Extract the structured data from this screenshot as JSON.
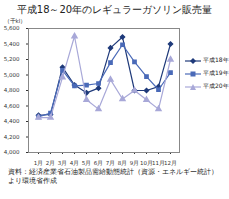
{
  "chart_data": {
    "type": "line",
    "title": "平成18～20年のレギュラーガソリン販売量",
    "y_label": "（千kl）",
    "caption": "資料：経済産業省石油製品需給動態統計（資源・エネルギー統計）より環境省作成",
    "categories": [
      "1月",
      "2月",
      "3月",
      "4月",
      "5月",
      "6月",
      "7月",
      "8月",
      "9月",
      "10月",
      "11月",
      "12月"
    ],
    "series": [
      {
        "name": "平成18年",
        "color": "#1f3a7a",
        "marker": "diamond",
        "values": [
          4480,
          4490,
          5100,
          4870,
          4770,
          4830,
          5350,
          5490,
          4800,
          4800,
          4850,
          5400
        ]
      },
      {
        "name": "平成19年",
        "color": "#4a6ab8",
        "marker": "square",
        "values": [
          4460,
          4510,
          5060,
          4860,
          4870,
          4890,
          5160,
          5390,
          5170,
          4980,
          4810,
          5030
        ]
      },
      {
        "name": "平成20年",
        "color": "#a8a8d8",
        "marker": "triangle",
        "values": [
          4450,
          4450,
          4970,
          5500,
          4680,
          4560,
          4940,
          4690,
          4800,
          4680,
          4560,
          5200
        ]
      }
    ],
    "ylim": [
      4000,
      5600
    ],
    "yticks": [
      {
        "value": 4000,
        "label": "4,000"
      },
      {
        "value": 4200,
        "label": "4,200"
      },
      {
        "value": 4400,
        "label": "4,400"
      },
      {
        "value": 4600,
        "label": "4,600"
      },
      {
        "value": 4800,
        "label": "4,800"
      },
      {
        "value": 5000,
        "label": "5,000"
      },
      {
        "value": 5200,
        "label": "5,200"
      },
      {
        "value": 5400,
        "label": "5,400"
      },
      {
        "value": 5600,
        "label": "5,600"
      }
    ],
    "grid": false,
    "legend": "right"
  }
}
